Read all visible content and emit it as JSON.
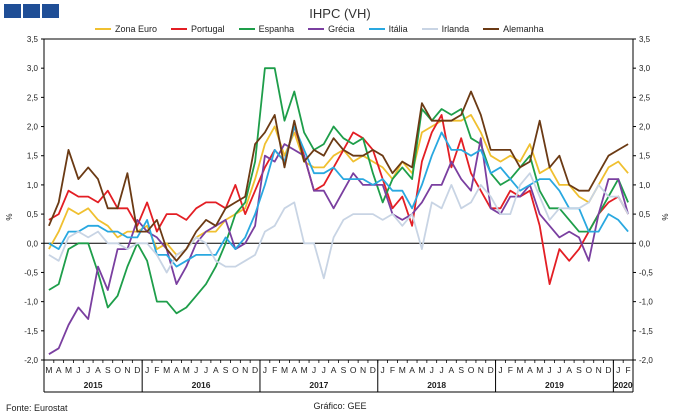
{
  "header": {
    "title": "IHPC (VH)"
  },
  "footer": {
    "source": "Fonte: Eurostat",
    "credit": "Gráfico: GEE"
  },
  "chart_data": {
    "type": "line",
    "y_unit_left": "%",
    "y_unit_right": "%",
    "ylim": [
      -2.0,
      3.5
    ],
    "y_ticks": [
      "3,5",
      "3,0",
      "2,5",
      "2,0",
      "1,5",
      "1,0",
      "0,5",
      "0,0",
      "-0,5",
      "-1,0",
      "-1,5",
      "-2,0"
    ],
    "month_labels": [
      "M",
      "A",
      "M",
      "J",
      "J",
      "A",
      "S",
      "O",
      "N",
      "D",
      "J",
      "F",
      "M",
      "A",
      "M",
      "J",
      "J",
      "A",
      "S",
      "O",
      "N",
      "D",
      "J",
      "F",
      "M",
      "A",
      "M",
      "J",
      "J",
      "A",
      "S",
      "O",
      "N",
      "D",
      "J",
      "F",
      "M",
      "A",
      "M",
      "J",
      "J",
      "A",
      "S",
      "O",
      "N",
      "D",
      "J",
      "F",
      "M",
      "A",
      "M",
      "J",
      "J",
      "A",
      "S",
      "O",
      "N",
      "D",
      "J",
      "F"
    ],
    "years": [
      {
        "label": "2015",
        "start": 0,
        "end": 10
      },
      {
        "label": "2016",
        "start": 10,
        "end": 22
      },
      {
        "label": "2017",
        "start": 22,
        "end": 34
      },
      {
        "label": "2018",
        "start": 34,
        "end": 46
      },
      {
        "label": "2019",
        "start": 46,
        "end": 58
      },
      {
        "label": "2020",
        "start": 58,
        "end": 60
      }
    ],
    "series": [
      {
        "name": "Zona Euro",
        "color": "#f0c030",
        "values": [
          -0.1,
          0.2,
          0.6,
          0.5,
          0.6,
          0.4,
          0.3,
          0.1,
          0.2,
          0.2,
          0.3,
          -0.1,
          0.0,
          -0.2,
          -0.1,
          0.1,
          0.2,
          0.2,
          0.4,
          0.5,
          0.6,
          1.1,
          1.7,
          2.0,
          1.5,
          1.9,
          1.4,
          1.3,
          1.3,
          1.5,
          1.6,
          1.4,
          1.5,
          1.4,
          1.3,
          1.1,
          1.4,
          1.2,
          1.9,
          2.0,
          2.1,
          2.1,
          2.1,
          2.2,
          1.9,
          1.5,
          1.4,
          1.5,
          1.4,
          1.7,
          1.2,
          1.3,
          1.0,
          1.0,
          0.8,
          0.7,
          1.0,
          1.3,
          1.4,
          1.2
        ]
      },
      {
        "name": "Portugal",
        "color": "#e31e24",
        "values": [
          0.4,
          0.5,
          0.9,
          0.8,
          0.8,
          0.7,
          0.9,
          0.6,
          0.6,
          0.3,
          0.7,
          0.2,
          0.5,
          0.5,
          0.4,
          0.6,
          0.7,
          0.7,
          0.6,
          1.0,
          0.5,
          0.9,
          1.3,
          1.6,
          1.4,
          2.0,
          1.5,
          0.9,
          1.0,
          1.3,
          1.6,
          1.9,
          1.8,
          1.6,
          1.1,
          0.6,
          0.8,
          0.3,
          1.4,
          1.9,
          2.2,
          1.3,
          1.8,
          1.2,
          0.9,
          0.6,
          0.6,
          0.9,
          0.8,
          0.9,
          0.3,
          -0.7,
          -0.1,
          -0.3,
          -0.1,
          0.2,
          0.5,
          0.7,
          0.8,
          0.5
        ]
      },
      {
        "name": "Espanha",
        "color": "#1e9e4a",
        "values": [
          -0.8,
          -0.7,
          -0.1,
          0.0,
          0.0,
          -0.5,
          -1.1,
          -0.9,
          -0.4,
          0.0,
          -0.3,
          -1.0,
          -1.0,
          -1.2,
          -1.1,
          -0.9,
          -0.7,
          -0.4,
          0.0,
          0.5,
          0.7,
          1.4,
          3.0,
          3.0,
          2.1,
          2.6,
          1.9,
          1.6,
          1.7,
          2.0,
          1.8,
          1.7,
          1.8,
          1.2,
          0.7,
          1.1,
          1.3,
          1.1,
          2.3,
          2.1,
          2.3,
          2.2,
          2.3,
          1.8,
          1.7,
          1.2,
          1.0,
          1.1,
          1.3,
          1.5,
          0.9,
          0.6,
          0.6,
          0.4,
          0.2,
          0.2,
          0.5,
          0.8,
          1.1,
          0.7
        ]
      },
      {
        "name": "Grécia",
        "color": "#7a3fa0",
        "values": [
          -1.9,
          -1.8,
          -1.4,
          -1.1,
          -1.3,
          -0.4,
          -0.8,
          -0.1,
          -0.1,
          0.4,
          0.2,
          0.1,
          -0.1,
          -0.7,
          -0.4,
          0.0,
          0.2,
          0.3,
          0.4,
          -0.1,
          0.0,
          0.3,
          1.5,
          1.4,
          1.7,
          1.6,
          1.5,
          0.9,
          0.9,
          0.6,
          0.9,
          1.2,
          1.0,
          1.0,
          1.0,
          0.5,
          0.4,
          0.5,
          0.7,
          1.0,
          1.0,
          1.4,
          1.1,
          0.9,
          1.8,
          0.6,
          0.5,
          0.8,
          0.8,
          1.0,
          0.5,
          0.3,
          0.1,
          0.2,
          0.1,
          -0.3,
          0.5,
          1.1,
          1.1,
          0.5
        ]
      },
      {
        "name": "Itália",
        "color": "#29a8e0",
        "values": [
          0.0,
          -0.1,
          0.2,
          0.2,
          0.3,
          0.3,
          0.2,
          0.2,
          0.1,
          0.1,
          0.4,
          -0.2,
          -0.2,
          -0.4,
          -0.3,
          -0.2,
          -0.2,
          -0.2,
          0.1,
          -0.1,
          0.1,
          0.5,
          1.0,
          1.6,
          1.4,
          2.0,
          1.6,
          1.2,
          1.2,
          1.3,
          1.1,
          1.1,
          1.1,
          1.0,
          1.1,
          0.9,
          0.9,
          0.6,
          1.0,
          1.5,
          1.9,
          1.6,
          1.6,
          1.5,
          1.6,
          1.2,
          1.3,
          1.1,
          0.9,
          1.0,
          1.1,
          1.1,
          0.9,
          0.6,
          0.6,
          0.2,
          0.2,
          0.5,
          0.4,
          0.2
        ]
      },
      {
        "name": "Irlanda",
        "color": "#c8d4e4",
        "values": [
          -0.2,
          -0.3,
          0.1,
          0.2,
          0.1,
          0.2,
          0.0,
          0.0,
          -0.1,
          0.0,
          0.0,
          -0.2,
          -0.5,
          -0.2,
          -0.1,
          0.1,
          0.0,
          -0.3,
          -0.4,
          -0.4,
          -0.3,
          -0.2,
          0.2,
          0.3,
          0.6,
          0.7,
          0.0,
          0.0,
          -0.6,
          0.1,
          0.4,
          0.5,
          0.5,
          0.5,
          0.4,
          0.5,
          0.3,
          0.5,
          -0.1,
          0.7,
          0.6,
          1.0,
          0.6,
          0.7,
          1.0,
          0.8,
          0.5,
          0.5,
          1.0,
          1.2,
          0.8,
          0.4,
          0.6,
          0.6,
          0.6,
          0.7,
          1.0,
          0.8,
          0.8,
          0.5
        ]
      },
      {
        "name": "Alemanha",
        "color": "#6b3a14",
        "values": [
          0.3,
          0.7,
          1.6,
          1.1,
          1.3,
          1.1,
          0.6,
          0.6,
          1.2,
          0.2,
          0.2,
          0.4,
          -0.1,
          -0.3,
          -0.1,
          0.2,
          0.4,
          0.3,
          0.6,
          0.7,
          0.8,
          1.7,
          1.9,
          2.2,
          1.3,
          2.1,
          1.4,
          1.6,
          1.5,
          1.8,
          1.6,
          1.5,
          1.5,
          1.6,
          1.5,
          1.2,
          1.4,
          1.3,
          2.4,
          2.1,
          2.1,
          2.1,
          2.2,
          2.6,
          2.2,
          1.6,
          1.6,
          1.6,
          1.3,
          1.4,
          2.1,
          1.3,
          1.5,
          1.0,
          0.9,
          0.9,
          1.2,
          1.5,
          1.6,
          1.7
        ]
      }
    ]
  }
}
